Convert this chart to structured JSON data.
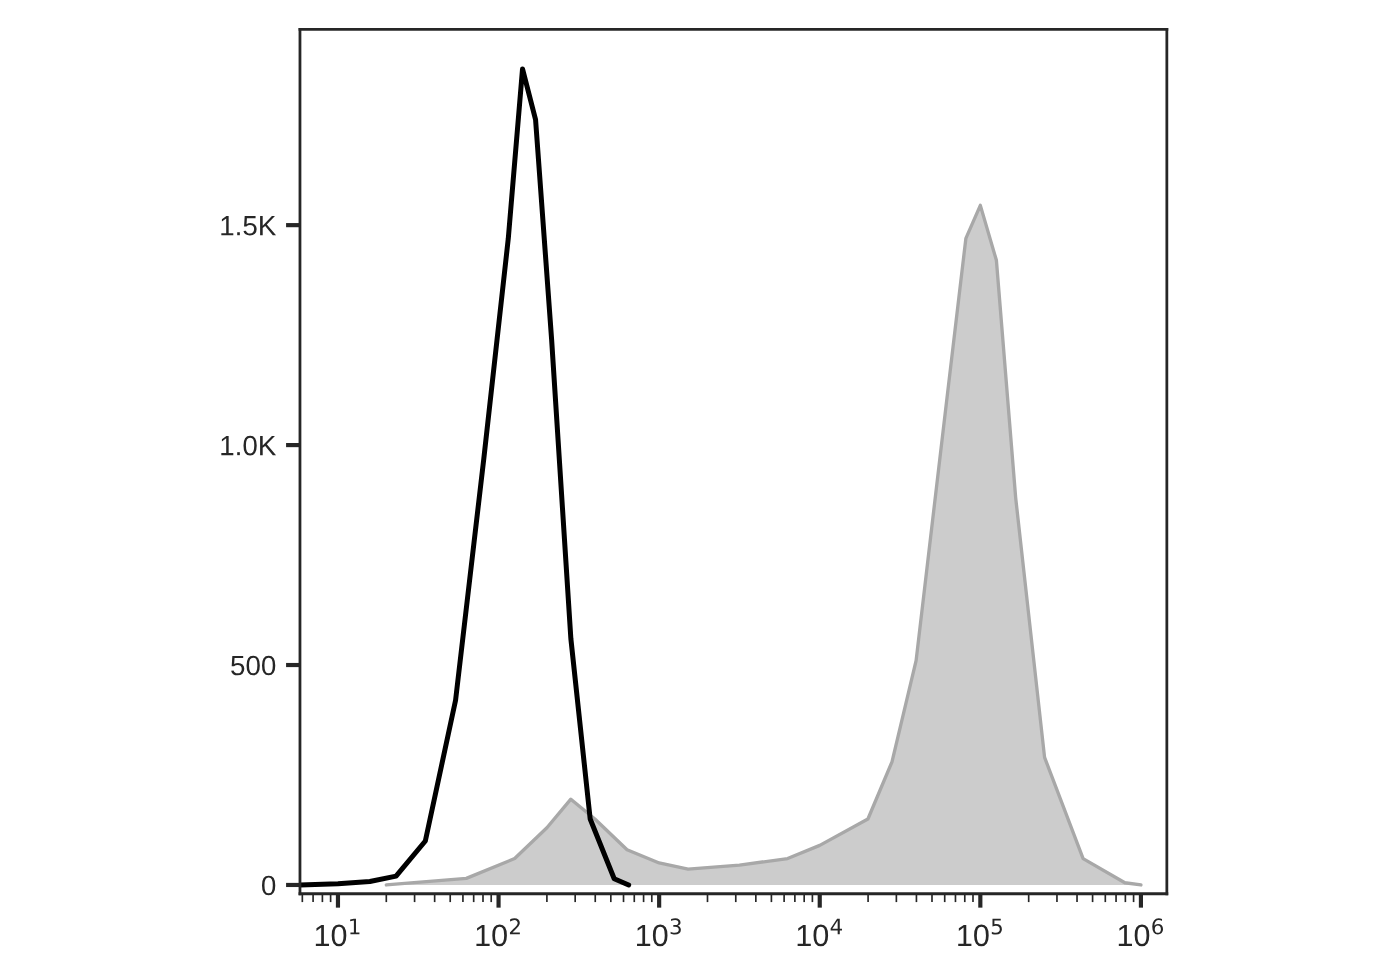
{
  "chart_data": {
    "type": "area",
    "log": "x",
    "xlim": [
      5.8,
      1450000
    ],
    "ylim": [
      -20,
      1945
    ],
    "xticks": [
      {
        "value": 10,
        "label": "10$^{1}$"
      },
      {
        "value": 100,
        "label": "10$^{2}$"
      },
      {
        "value": 1000,
        "label": "10$^{3}$"
      },
      {
        "value": 10000,
        "label": "10$^{4}$"
      },
      {
        "value": 100000,
        "label": "10$^{5}$"
      },
      {
        "value": 1000000,
        "label": "10$^{6}$"
      }
    ],
    "yticks": [
      0,
      500,
      {
        "value": 1000,
        "label": "1.0K"
      },
      {
        "value": 1500,
        "label": "1.5K"
      }
    ],
    "grid": false,
    "legend": false,
    "series": [
      {
        "color": "#cccccc",
        "x": [
          20,
          63,
          126,
          200,
          282,
          398,
          631,
          1000,
          1514,
          3162,
          6310,
          10000,
          19950,
          28180,
          39810,
          61660,
          81280,
          100000,
          125900,
          166000,
          251200,
          436500,
          794300,
          1000000
        ],
        "values": [
          0,
          15,
          60,
          130,
          195,
          150,
          80,
          50,
          36,
          45,
          60,
          90,
          150,
          280,
          510,
          1100,
          1470,
          1545,
          1420,
          880,
          290,
          60,
          5,
          0
        ]
      },
      {
        "type": "line",
        "color": "#000000",
        "x": [
          5.8,
          10,
          15.8,
          23,
          35,
          54,
          81,
          115,
          141,
          170,
          214,
          282,
          372,
          525,
          646
        ],
        "values": [
          0,
          3,
          8,
          20,
          100,
          420,
          970,
          1470,
          1855,
          1740,
          1240,
          560,
          150,
          14,
          0
        ]
      }
    ]
  }
}
